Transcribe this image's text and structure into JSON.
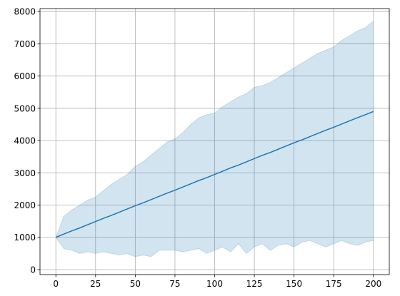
{
  "chart_data": {
    "type": "line",
    "x": [
      0,
      5,
      10,
      15,
      20,
      25,
      30,
      35,
      40,
      45,
      50,
      55,
      60,
      65,
      70,
      75,
      80,
      85,
      90,
      95,
      100,
      105,
      110,
      115,
      120,
      125,
      130,
      135,
      140,
      145,
      150,
      155,
      160,
      165,
      170,
      175,
      180,
      185,
      190,
      195,
      200
    ],
    "series": [
      {
        "color": "#1f77b4",
        "values": [
          1000,
          1100,
          1200,
          1290,
          1390,
          1490,
          1590,
          1680,
          1780,
          1880,
          1980,
          2070,
          2170,
          2270,
          2370,
          2460,
          2560,
          2660,
          2760,
          2850,
          2950,
          3050,
          3150,
          3240,
          3340,
          3440,
          3540,
          3630,
          3730,
          3830,
          3930,
          4020,
          4120,
          4220,
          4320,
          4410,
          4510,
          4610,
          4710,
          4800,
          4900
        ]
      }
    ],
    "band": {
      "color": "#1f77b4",
      "upper": [
        1000,
        1650,
        1850,
        2000,
        2150,
        2250,
        2450,
        2650,
        2800,
        2950,
        3200,
        3350,
        3550,
        3750,
        3950,
        4050,
        4250,
        4500,
        4700,
        4800,
        4850,
        5050,
        5200,
        5350,
        5450,
        5650,
        5700,
        5800,
        5950,
        6100,
        6250,
        6400,
        6550,
        6700,
        6800,
        6900,
        7100,
        7250,
        7400,
        7500,
        7700
      ],
      "lower": [
        1000,
        650,
        600,
        500,
        550,
        500,
        550,
        500,
        450,
        500,
        400,
        450,
        400,
        600,
        600,
        600,
        550,
        600,
        650,
        500,
        600,
        700,
        550,
        800,
        500,
        700,
        800,
        600,
        750,
        800,
        700,
        850,
        900,
        800,
        700,
        800,
        900,
        800,
        750,
        850,
        900
      ]
    },
    "xlim": [
      -10,
      210
    ],
    "ylim": [
      -155,
      8090
    ],
    "xticks": [
      0,
      25,
      50,
      75,
      100,
      125,
      150,
      175,
      200
    ],
    "yticks": [
      0,
      1000,
      2000,
      3000,
      4000,
      5000,
      6000,
      7000,
      8000
    ],
    "grid": true
  }
}
